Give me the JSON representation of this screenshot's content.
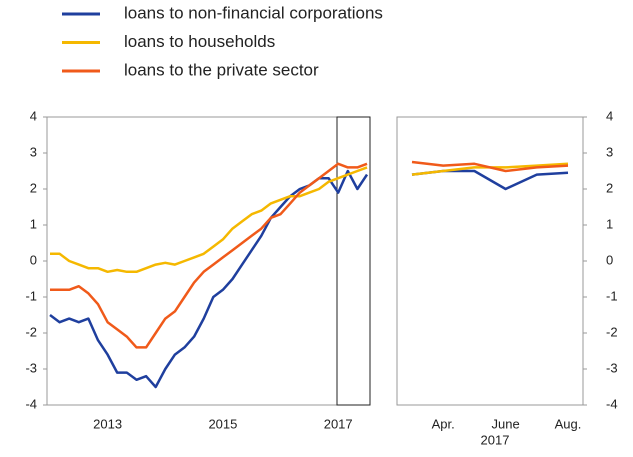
{
  "legend": {
    "position": "top-left"
  },
  "chart_data": [
    {
      "type": "line",
      "categories": [
        null,
        null,
        null,
        null,
        null,
        null,
        "2013",
        null,
        null,
        null,
        null,
        null,
        null,
        null,
        null,
        null,
        null,
        null,
        "2015",
        null,
        null,
        null,
        null,
        null,
        null,
        null,
        null,
        null,
        null,
        null,
        "2017",
        null,
        null,
        null
      ],
      "ylim": [
        -4,
        4
      ],
      "yticks": [
        -4,
        -3,
        -2,
        -1,
        0,
        1,
        2,
        3,
        4
      ],
      "series": [
        {
          "name": "loans to non-financial corporations",
          "color": "#1f3f9e",
          "values": [
            -1.5,
            -1.7,
            -1.6,
            -1.7,
            -1.6,
            -2.2,
            -2.6,
            -3.1,
            -3.1,
            -3.3,
            -3.2,
            -3.5,
            -3.0,
            -2.6,
            -2.4,
            -2.1,
            -1.6,
            -1.0,
            -0.8,
            -0.5,
            -0.1,
            0.3,
            0.7,
            1.2,
            1.5,
            1.8,
            2.0,
            2.1,
            2.3,
            2.3,
            1.9,
            2.5,
            2.0,
            2.4
          ]
        },
        {
          "name": "loans to households",
          "color": "#f5b800",
          "values": [
            0.2,
            0.2,
            0.0,
            -0.1,
            -0.2,
            -0.2,
            -0.3,
            -0.25,
            -0.3,
            -0.3,
            -0.2,
            -0.1,
            -0.05,
            -0.1,
            0.0,
            0.1,
            0.2,
            0.4,
            0.6,
            0.9,
            1.1,
            1.3,
            1.4,
            1.6,
            1.7,
            1.8,
            1.8,
            1.9,
            2.0,
            2.2,
            2.3,
            2.4,
            2.5,
            2.6
          ]
        },
        {
          "name": "loans to the private sector",
          "color": "#f05a1a",
          "values": [
            -0.8,
            -0.8,
            -0.8,
            -0.7,
            -0.9,
            -1.2,
            -1.7,
            -1.9,
            -2.1,
            -2.4,
            -2.4,
            -2.0,
            -1.6,
            -1.4,
            -1.0,
            -0.6,
            -0.3,
            -0.1,
            0.1,
            0.3,
            0.5,
            0.7,
            0.9,
            1.2,
            1.3,
            1.6,
            1.9,
            2.1,
            2.3,
            2.5,
            2.7,
            2.6,
            2.6,
            2.7
          ]
        }
      ]
    },
    {
      "type": "line",
      "categories": [
        null,
        "Apr.",
        null,
        "June",
        null,
        "Aug."
      ],
      "x_sublabel": "2017",
      "ylim": [
        -4,
        4
      ],
      "yticks": [
        -4,
        -3,
        -2,
        -1,
        0,
        1,
        2,
        3,
        4
      ],
      "series": [
        {
          "color": "#1f3f9e",
          "values": [
            2.4,
            2.5,
            2.5,
            2.0,
            2.4,
            2.45
          ]
        },
        {
          "color": "#f5b800",
          "values": [
            2.4,
            2.5,
            2.6,
            2.6,
            2.65,
            2.7
          ]
        },
        {
          "color": "#f05a1a",
          "values": [
            2.75,
            2.65,
            2.7,
            2.5,
            2.6,
            2.65
          ]
        }
      ]
    }
  ]
}
